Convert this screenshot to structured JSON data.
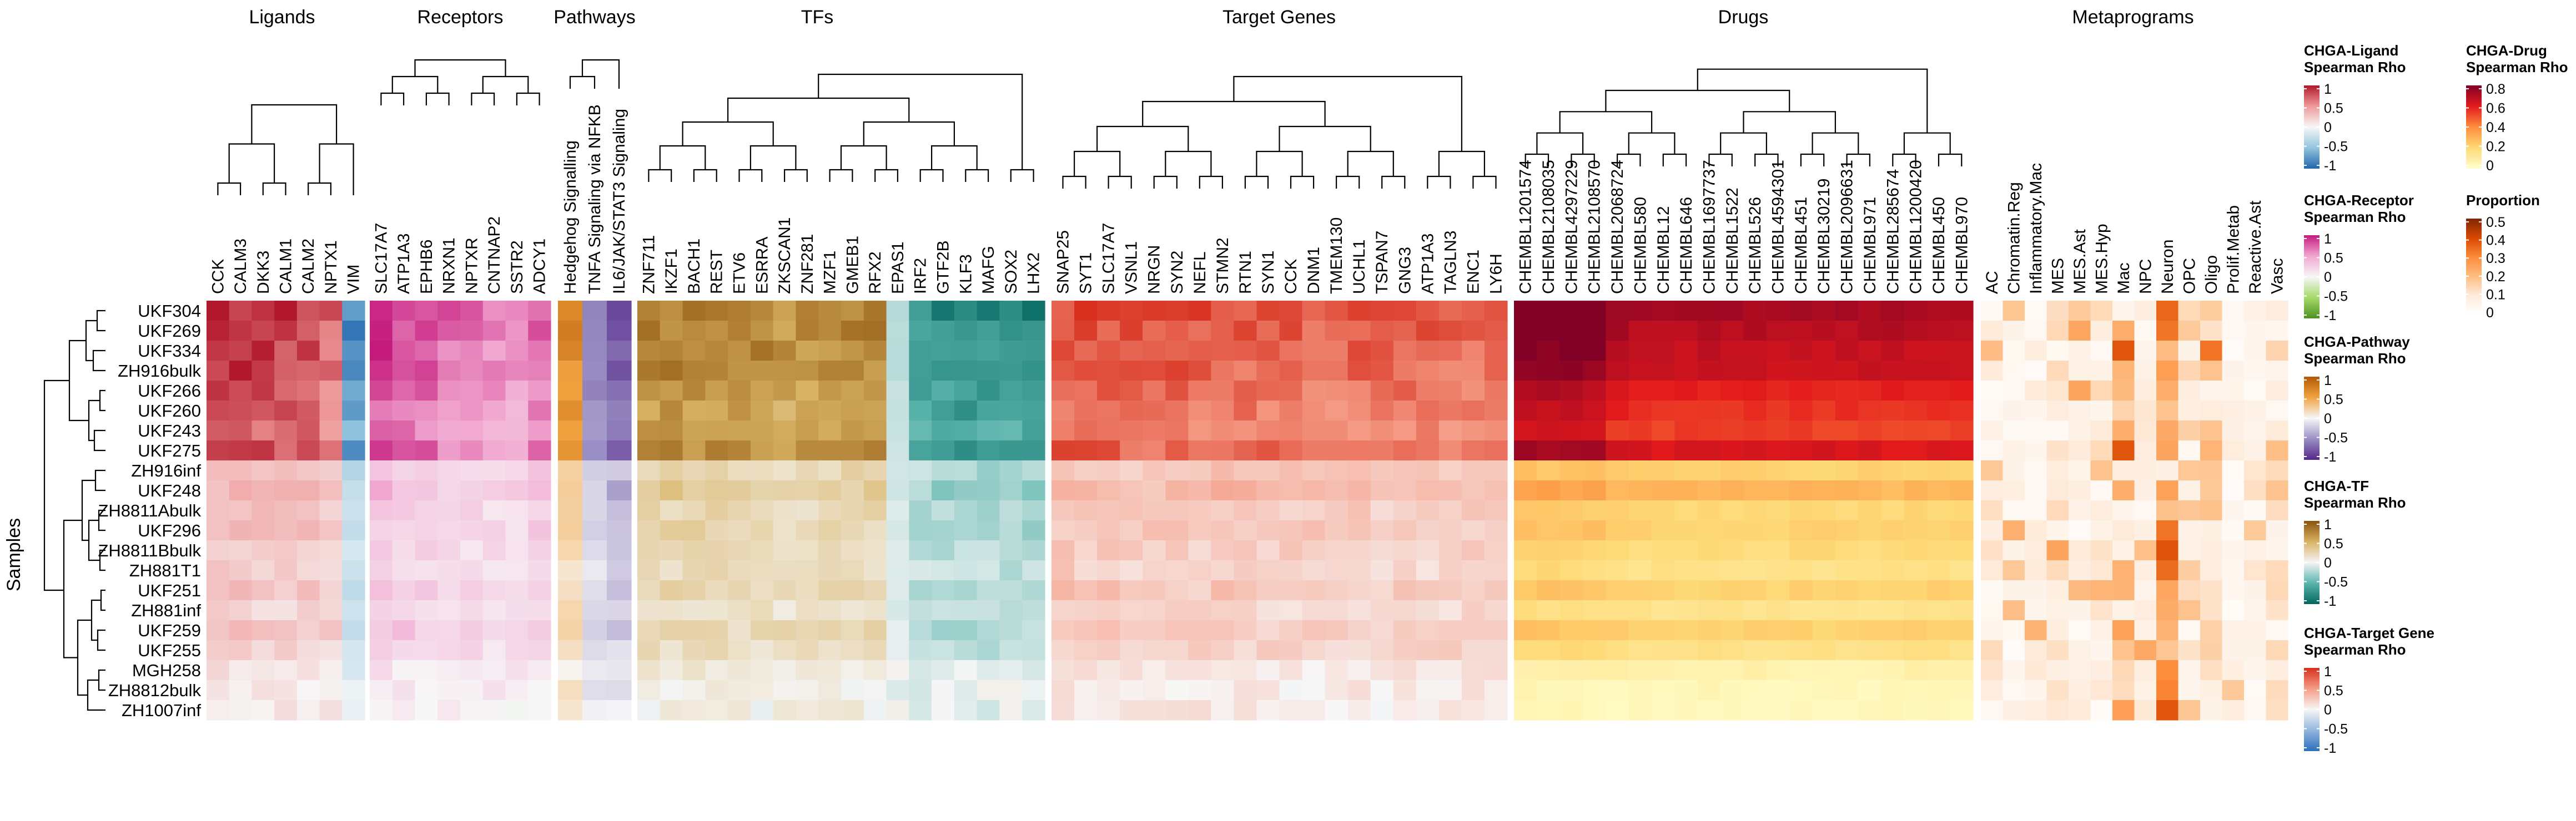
{
  "chart_data": {
    "type": "heatmap",
    "title": "",
    "row_axis_label": "Samples",
    "rows": [
      "UKF304",
      "UKF269",
      "UKF334",
      "ZH916bulk",
      "UKF266",
      "UKF260",
      "UKF243",
      "UKF275",
      "ZH916inf",
      "UKF248",
      "ZH8811Abulk",
      "UKF296",
      "ZH8811Bbulk",
      "ZH881T1",
      "UKF251",
      "ZH881inf",
      "UKF259",
      "UKF255",
      "MGH258",
      "ZH8812bulk",
      "ZH1007inf"
    ],
    "panels": [
      {
        "name": "Ligands",
        "scale": "ligand",
        "columns": [
          "CCK",
          "CALM3",
          "DKK3",
          "CALM1",
          "CALM2",
          "NPTX1",
          "VIM"
        ],
        "column_profile": [
          1.0,
          1.0,
          0.95,
          0.95,
          0.9,
          0.75,
          -0.85
        ],
        "sample_factor_min": 0.1
      },
      {
        "name": "Receptors",
        "scale": "receptor",
        "columns": [
          "SLC17A7",
          "ATP1A3",
          "EPHB6",
          "NRXN1",
          "NPTXR",
          "CNTNAP2",
          "SSTR2",
          "ADCY1"
        ],
        "column_profile": [
          1.0,
          0.95,
          0.85,
          0.75,
          0.7,
          0.65,
          0.6,
          0.8
        ],
        "sample_factor_min": 0.1
      },
      {
        "name": "Pathways",
        "scale": "pathway",
        "columns": [
          "Hedgehog Signalling",
          "TNFA Signaling via NFKB",
          "IL6/JAK/STAT3 Signaling"
        ],
        "column_profile": [
          0.7,
          -0.6,
          -0.9
        ],
        "sample_factor_min": 0.1
      },
      {
        "name": "TFs",
        "scale": "tf",
        "columns": [
          "ZNF711",
          "IKZF1",
          "BACH1",
          "REST",
          "ETV6",
          "ESRRA",
          "ZKSCAN1",
          "ZNF281",
          "MZF1",
          "GMEB1",
          "RFX2",
          "EPAS1",
          "IRF2",
          "GTF2B",
          "KLF3",
          "MAFG",
          "SOX2",
          "LHX2"
        ],
        "column_profile": [
          0.85,
          0.85,
          0.8,
          0.8,
          0.75,
          0.8,
          0.7,
          0.75,
          0.8,
          0.8,
          0.8,
          -0.2,
          -0.7,
          -0.8,
          -0.85,
          -0.8,
          -0.75,
          -0.85
        ],
        "sample_factor_min": 0.05
      },
      {
        "name": "Target Genes",
        "scale": "target",
        "columns": [
          "SNAP25",
          "SYT1",
          "SLC17A7",
          "VSNL1",
          "NRGN",
          "SYN2",
          "NEFL",
          "STMN2",
          "RTN1",
          "SYN1",
          "CCK",
          "DNM1",
          "TMEM130",
          "UCHL1",
          "TSPAN7",
          "GNG3",
          "ATP1A3",
          "TAGLN3",
          "ENC1",
          "LY6H"
        ],
        "column_profile": [
          0.95,
          0.95,
          0.9,
          0.9,
          0.85,
          0.9,
          0.85,
          0.9,
          0.85,
          0.85,
          0.85,
          0.8,
          0.8,
          0.85,
          0.8,
          0.85,
          0.85,
          0.8,
          0.8,
          0.85
        ],
        "sample_factor_min": 0.08
      },
      {
        "name": "Drugs",
        "scale": "drug",
        "columns": [
          "CHEMBL1201574",
          "CHEMBL2108035",
          "CHEMBL4297229",
          "CHEMBL2108570",
          "CHEMBL2068724",
          "CHEMBL580",
          "CHEMBL12",
          "CHEMBL646",
          "CHEMBL1697737",
          "CHEMBL1522",
          "CHEMBL526",
          "CHEMBL4594301",
          "CHEMBL451",
          "CHEMBL30219",
          "CHEMBL2096631",
          "CHEMBL971",
          "CHEMBL285674",
          "CHEMBL1200420",
          "CHEMBL450",
          "CHEMBL970"
        ],
        "column_profile": [
          0.85,
          0.85,
          0.85,
          0.85,
          0.75,
          0.72,
          0.72,
          0.72,
          0.72,
          0.72,
          0.72,
          0.72,
          0.72,
          0.72,
          0.72,
          0.72,
          0.72,
          0.72,
          0.72,
          0.72
        ],
        "sample_factor_min": 0.05
      },
      {
        "name": "Metaprograms",
        "scale": "prop",
        "columns": [
          "AC",
          "Chromatin.Reg",
          "Inflammatory.Mac",
          "MES",
          "MES.Ast",
          "MES.Hyp",
          "Mac",
          "NPC",
          "Neuron",
          "OPC",
          "Oligo",
          "Prolif.Metab",
          "Reactive.Ast",
          "Vasc"
        ],
        "column_profile": [
          0.08,
          0.05,
          0.06,
          0.08,
          0.06,
          0.08,
          0.15,
          0.07,
          0.22,
          0.1,
          0.12,
          0.06,
          0.07,
          0.09
        ],
        "sample_factor_min": 0.4
      }
    ],
    "sample_strength": [
      1.0,
      0.96,
      0.92,
      0.9,
      0.82,
      0.78,
      0.74,
      0.86,
      0.3,
      0.4,
      0.28,
      0.3,
      0.26,
      0.22,
      0.3,
      0.2,
      0.3,
      0.22,
      0.1,
      0.06,
      0.05
    ],
    "legends": [
      {
        "id": "ligand",
        "title": [
          "CHGA-Ligand",
          "Spearman Rho"
        ],
        "ticks": [
          "1",
          "0.5",
          "0",
          "-0.5",
          "-1"
        ],
        "colors": [
          "#b2182b",
          "#ef9a9a",
          "#f7f7f7",
          "#92c5de",
          "#2166ac"
        ]
      },
      {
        "id": "receptor",
        "title": [
          "CHGA-Receptor",
          "Spearman Rho"
        ],
        "ticks": [
          "1",
          "0.5",
          "0",
          "-0.5",
          "-1"
        ],
        "colors": [
          "#c51b7d",
          "#f1a6cf",
          "#f7f7f7",
          "#a6d96a",
          "#4d9221"
        ]
      },
      {
        "id": "pathway",
        "title": [
          "CHGA-Pathway",
          "Spearman Rho"
        ],
        "ticks": [
          "1",
          "0.5",
          "0",
          "-0.5",
          "-1"
        ],
        "colors": [
          "#b35806",
          "#f1a340",
          "#f7f7f7",
          "#998ec3",
          "#542788"
        ]
      },
      {
        "id": "tf",
        "title": [
          "CHGA-TF",
          "Spearman Rho"
        ],
        "ticks": [
          "1",
          "0.5",
          "0",
          "-0.5",
          "-1"
        ],
        "colors": [
          "#8c510a",
          "#d8b365",
          "#f5f5f5",
          "#5ab4ac",
          "#01665e"
        ]
      },
      {
        "id": "target",
        "title": [
          "CHGA-Target Gene",
          "Spearman Rho"
        ],
        "ticks": [
          "1",
          "0.5",
          "0",
          "-0.5",
          "-1"
        ],
        "colors": [
          "#d7301f",
          "#f59c86",
          "#f7f7f7",
          "#92b6dd",
          "#2c6fbd"
        ]
      },
      {
        "id": "drug",
        "title": [
          "CHGA-Drug",
          "Spearman Rho"
        ],
        "ticks": [
          "0.8",
          "0.6",
          "0.4",
          "0.2",
          "0"
        ],
        "colors": [
          "#800026",
          "#e31a1c",
          "#fd8d3c",
          "#fed976",
          "#ffffcc"
        ]
      },
      {
        "id": "prop",
        "title": [
          "Proportion"
        ],
        "ticks": [
          "0.5",
          "0.4",
          "0.3",
          "0.2",
          "0.1",
          "0"
        ],
        "colors": [
          "#7f2704",
          "#d94801",
          "#fd8d3c",
          "#fdbe85",
          "#feedde",
          "#ffffff"
        ]
      }
    ]
  }
}
